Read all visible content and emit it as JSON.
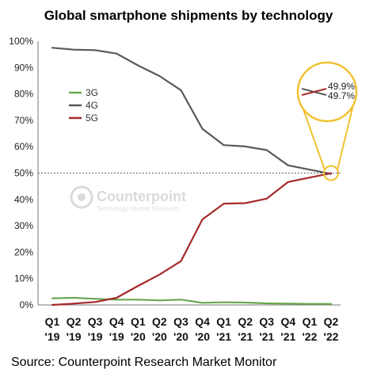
{
  "chart_data": {
    "type": "line",
    "title": "Global smartphone shipments by technology",
    "categories": [
      [
        "Q1",
        "'19"
      ],
      [
        "Q2",
        "'19"
      ],
      [
        "Q3",
        "'19"
      ],
      [
        "Q4",
        "'19"
      ],
      [
        "Q1",
        "'20"
      ],
      [
        "Q2",
        "'20"
      ],
      [
        "Q3",
        "'20"
      ],
      [
        "Q4",
        "'20"
      ],
      [
        "Q1",
        "'21"
      ],
      [
        "Q2",
        "'21"
      ],
      [
        "Q3",
        "'21"
      ],
      [
        "Q4",
        "'21"
      ],
      [
        "Q1",
        "'22"
      ],
      [
        "Q2",
        "'22"
      ]
    ],
    "series": [
      {
        "name": "3G",
        "color": "#6aa84f",
        "values": [
          2.5,
          2.7,
          2.3,
          2.0,
          2.0,
          1.7,
          2.0,
          0.8,
          1.0,
          0.9,
          0.6,
          0.5,
          0.4,
          0.4
        ]
      },
      {
        "name": "4G",
        "color": "#595959",
        "values": [
          97.5,
          96.8,
          96.6,
          95.3,
          90.8,
          86.8,
          81.4,
          66.8,
          60.6,
          60.1,
          58.7,
          52.9,
          51.3,
          49.7
        ]
      },
      {
        "name": "5G",
        "color": "#a52a2a",
        "values": [
          0.0,
          0.5,
          1.1,
          2.7,
          7.2,
          11.5,
          16.6,
          32.4,
          38.4,
          38.6,
          40.3,
          46.6,
          48.3,
          49.9
        ]
      }
    ],
    "ylim": [
      0,
      100
    ],
    "yticks": [
      "0%",
      "10%",
      "20%",
      "30%",
      "40%",
      "50%",
      "60%",
      "70%",
      "80%",
      "90%",
      "100%"
    ],
    "reference_line": {
      "value": 50,
      "label": "50%",
      "color": "#c00000"
    },
    "legend_position": "left",
    "callout": {
      "labels": [
        "49.9%",
        "49.7%"
      ],
      "colors": [
        "#a52a2a",
        "#595959"
      ],
      "border_color": "#f1c232"
    },
    "xlabel": "",
    "ylabel": ""
  },
  "watermark": {
    "name": "Counterpoint",
    "tagline": "Technology Market Research"
  },
  "source": "Source: Counterpoint Research Market Monitor"
}
